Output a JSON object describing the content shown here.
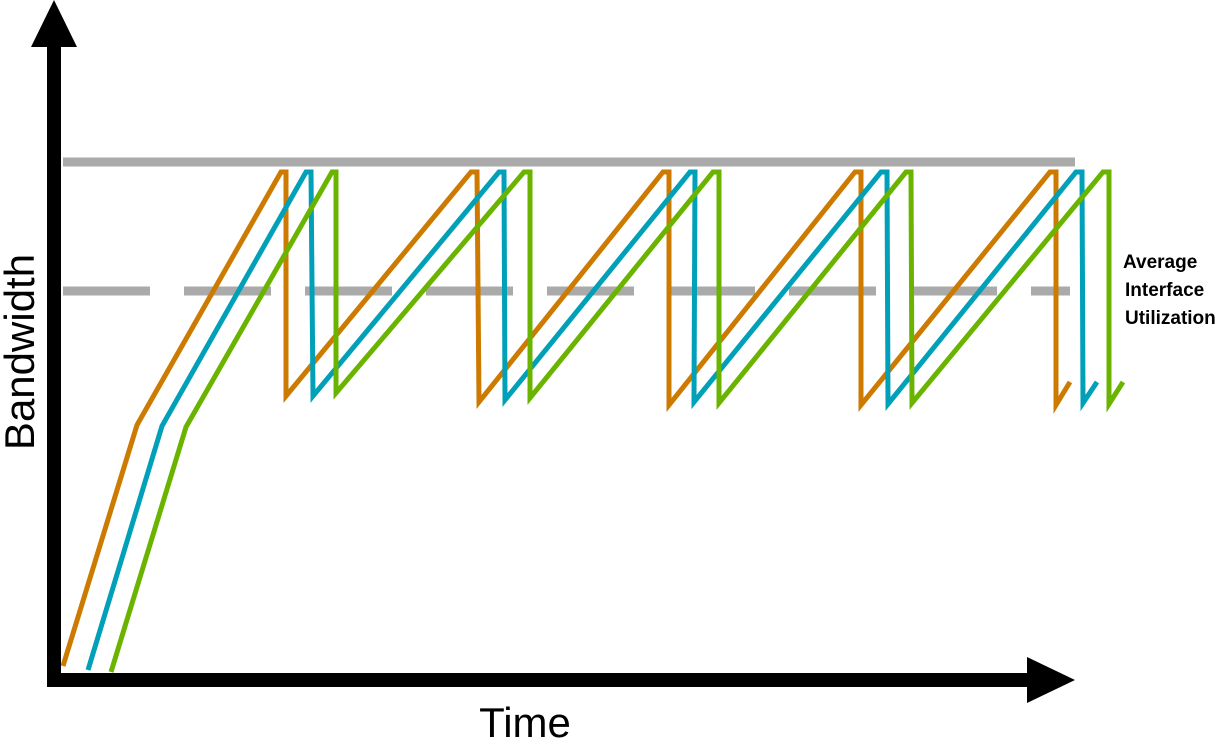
{
  "x_axis_label": "Time",
  "y_axis_label": "Bandwidth",
  "average_label": [
    "Average",
    "Interface",
    "Utilization"
  ],
  "colors": {
    "axis": "#000000",
    "limit_line": "#aaaaaa",
    "average_line": "#aaaaaa",
    "flows": [
      "#cc7a00",
      "#00a0b8",
      "#6ab400"
    ]
  },
  "flows": [
    {
      "color": "#cc7a00",
      "points": [
        [
          63,
          666
        ],
        [
          137,
          425
        ],
        [
          281,
          172
        ],
        [
          286,
          172
        ],
        [
          286,
          396
        ],
        [
          471,
          172
        ],
        [
          477,
          172
        ],
        [
          479,
          402
        ],
        [
          663,
          172
        ],
        [
          669,
          172
        ],
        [
          669,
          405
        ],
        [
          855,
          172
        ],
        [
          861,
          172
        ],
        [
          861,
          405
        ],
        [
          1050,
          172
        ],
        [
          1056,
          172
        ],
        [
          1056,
          405
        ],
        [
          1070,
          382
        ]
      ]
    },
    {
      "color": "#00a0b8",
      "points": [
        [
          88,
          670
        ],
        [
          162,
          426
        ],
        [
          306,
          172
        ],
        [
          311,
          172
        ],
        [
          313,
          396
        ],
        [
          499,
          172
        ],
        [
          504,
          172
        ],
        [
          505,
          400
        ],
        [
          690,
          172
        ],
        [
          695,
          172
        ],
        [
          694,
          402
        ],
        [
          881,
          172
        ],
        [
          887,
          172
        ],
        [
          888,
          404
        ],
        [
          1076,
          172
        ],
        [
          1082,
          172
        ],
        [
          1083,
          403
        ],
        [
          1097,
          382
        ]
      ]
    },
    {
      "color": "#6ab400",
      "points": [
        [
          111,
          672
        ],
        [
          186,
          427
        ],
        [
          332,
          172
        ],
        [
          336,
          172
        ],
        [
          336,
          393
        ],
        [
          524,
          172
        ],
        [
          530,
          172
        ],
        [
          530,
          398
        ],
        [
          713,
          172
        ],
        [
          719,
          172
        ],
        [
          719,
          403
        ],
        [
          906,
          172
        ],
        [
          911,
          172
        ],
        [
          912,
          403
        ],
        [
          1103,
          172
        ],
        [
          1109,
          172
        ],
        [
          1109,
          404
        ],
        [
          1123,
          382
        ]
      ]
    }
  ]
}
